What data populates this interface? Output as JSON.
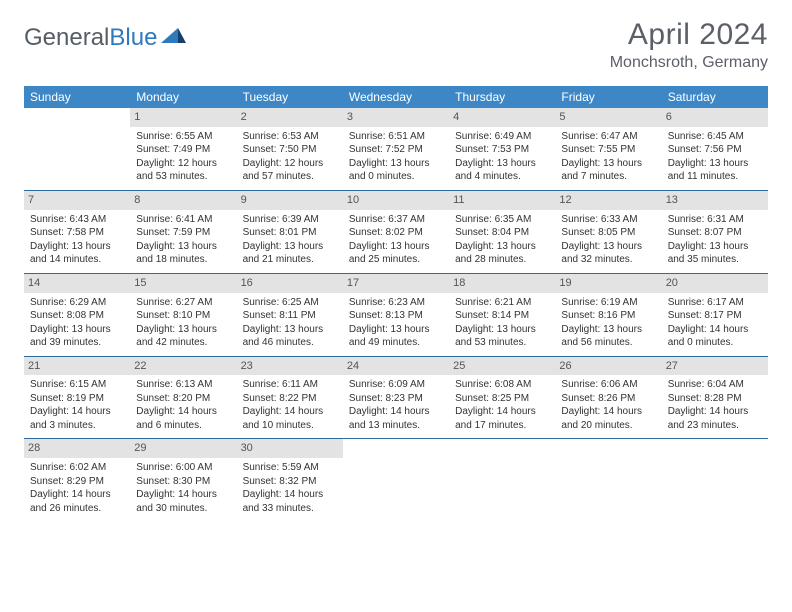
{
  "brand": {
    "word1": "General",
    "word2": "Blue"
  },
  "title": "April 2024",
  "location": "Monchsroth, Germany",
  "colors": {
    "header_bg": "#3d87c7",
    "header_text": "#ffffff",
    "daynum_bg": "#e3e3e3",
    "daynum_text": "#555555",
    "rule": "#2f6aa0",
    "title_color": "#5b6068",
    "body_text": "#333333"
  },
  "columns": [
    "Sunday",
    "Monday",
    "Tuesday",
    "Wednesday",
    "Thursday",
    "Friday",
    "Saturday"
  ],
  "weeks": [
    [
      {
        "n": null
      },
      {
        "n": 1,
        "sr": "6:55 AM",
        "ss": "7:49 PM",
        "dl": "12 hours and 53 minutes."
      },
      {
        "n": 2,
        "sr": "6:53 AM",
        "ss": "7:50 PM",
        "dl": "12 hours and 57 minutes."
      },
      {
        "n": 3,
        "sr": "6:51 AM",
        "ss": "7:52 PM",
        "dl": "13 hours and 0 minutes."
      },
      {
        "n": 4,
        "sr": "6:49 AM",
        "ss": "7:53 PM",
        "dl": "13 hours and 4 minutes."
      },
      {
        "n": 5,
        "sr": "6:47 AM",
        "ss": "7:55 PM",
        "dl": "13 hours and 7 minutes."
      },
      {
        "n": 6,
        "sr": "6:45 AM",
        "ss": "7:56 PM",
        "dl": "13 hours and 11 minutes."
      }
    ],
    [
      {
        "n": 7,
        "sr": "6:43 AM",
        "ss": "7:58 PM",
        "dl": "13 hours and 14 minutes."
      },
      {
        "n": 8,
        "sr": "6:41 AM",
        "ss": "7:59 PM",
        "dl": "13 hours and 18 minutes."
      },
      {
        "n": 9,
        "sr": "6:39 AM",
        "ss": "8:01 PM",
        "dl": "13 hours and 21 minutes."
      },
      {
        "n": 10,
        "sr": "6:37 AM",
        "ss": "8:02 PM",
        "dl": "13 hours and 25 minutes."
      },
      {
        "n": 11,
        "sr": "6:35 AM",
        "ss": "8:04 PM",
        "dl": "13 hours and 28 minutes."
      },
      {
        "n": 12,
        "sr": "6:33 AM",
        "ss": "8:05 PM",
        "dl": "13 hours and 32 minutes."
      },
      {
        "n": 13,
        "sr": "6:31 AM",
        "ss": "8:07 PM",
        "dl": "13 hours and 35 minutes."
      }
    ],
    [
      {
        "n": 14,
        "sr": "6:29 AM",
        "ss": "8:08 PM",
        "dl": "13 hours and 39 minutes."
      },
      {
        "n": 15,
        "sr": "6:27 AM",
        "ss": "8:10 PM",
        "dl": "13 hours and 42 minutes."
      },
      {
        "n": 16,
        "sr": "6:25 AM",
        "ss": "8:11 PM",
        "dl": "13 hours and 46 minutes."
      },
      {
        "n": 17,
        "sr": "6:23 AM",
        "ss": "8:13 PM",
        "dl": "13 hours and 49 minutes."
      },
      {
        "n": 18,
        "sr": "6:21 AM",
        "ss": "8:14 PM",
        "dl": "13 hours and 53 minutes."
      },
      {
        "n": 19,
        "sr": "6:19 AM",
        "ss": "8:16 PM",
        "dl": "13 hours and 56 minutes."
      },
      {
        "n": 20,
        "sr": "6:17 AM",
        "ss": "8:17 PM",
        "dl": "14 hours and 0 minutes."
      }
    ],
    [
      {
        "n": 21,
        "sr": "6:15 AM",
        "ss": "8:19 PM",
        "dl": "14 hours and 3 minutes."
      },
      {
        "n": 22,
        "sr": "6:13 AM",
        "ss": "8:20 PM",
        "dl": "14 hours and 6 minutes."
      },
      {
        "n": 23,
        "sr": "6:11 AM",
        "ss": "8:22 PM",
        "dl": "14 hours and 10 minutes."
      },
      {
        "n": 24,
        "sr": "6:09 AM",
        "ss": "8:23 PM",
        "dl": "14 hours and 13 minutes."
      },
      {
        "n": 25,
        "sr": "6:08 AM",
        "ss": "8:25 PM",
        "dl": "14 hours and 17 minutes."
      },
      {
        "n": 26,
        "sr": "6:06 AM",
        "ss": "8:26 PM",
        "dl": "14 hours and 20 minutes."
      },
      {
        "n": 27,
        "sr": "6:04 AM",
        "ss": "8:28 PM",
        "dl": "14 hours and 23 minutes."
      }
    ],
    [
      {
        "n": 28,
        "sr": "6:02 AM",
        "ss": "8:29 PM",
        "dl": "14 hours and 26 minutes."
      },
      {
        "n": 29,
        "sr": "6:00 AM",
        "ss": "8:30 PM",
        "dl": "14 hours and 30 minutes."
      },
      {
        "n": 30,
        "sr": "5:59 AM",
        "ss": "8:32 PM",
        "dl": "14 hours and 33 minutes."
      },
      {
        "n": null
      },
      {
        "n": null
      },
      {
        "n": null
      },
      {
        "n": null
      }
    ]
  ],
  "labels": {
    "sunrise": "Sunrise:",
    "sunset": "Sunset:",
    "daylight": "Daylight:"
  }
}
